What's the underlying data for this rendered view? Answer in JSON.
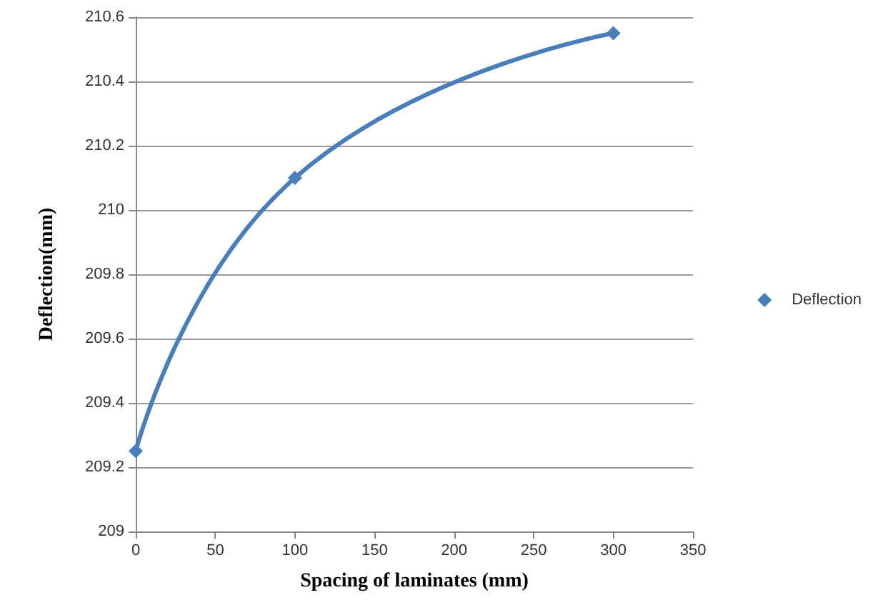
{
  "chart_data": {
    "type": "line",
    "xlabel": "Spacing of laminates (mm)",
    "ylabel": "Deflection(mm)",
    "x": [
      0,
      100,
      300
    ],
    "series": [
      {
        "name": "Deflection",
        "color": "#4a7ebb",
        "values": [
          209.25,
          210.1,
          210.55
        ]
      }
    ],
    "xlim": [
      0,
      350
    ],
    "xticks": [
      0,
      50,
      100,
      150,
      200,
      250,
      300,
      350
    ],
    "ylim": [
      209,
      210.6
    ],
    "yticks": [
      209,
      209.2,
      209.4,
      209.6,
      209.8,
      210,
      210.2,
      210.4,
      210.6
    ],
    "grid": "y",
    "legend": "right",
    "marker": "diamond",
    "line_style": "solid"
  }
}
